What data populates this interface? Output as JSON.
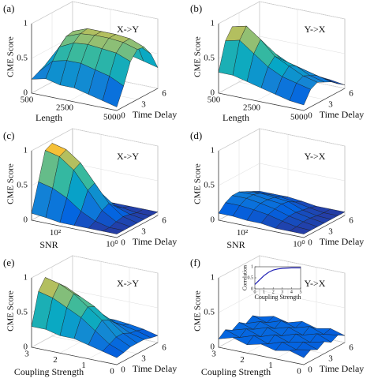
{
  "chart_data": [
    {
      "type": "surface",
      "panel": "(a)",
      "title": "X->Y",
      "zlabel": "CME Score",
      "xlabel": "Length",
      "ylabel": "Time Delay",
      "colormap": "parula",
      "x": [
        500,
        1250,
        2000,
        2750,
        3500,
        4250,
        5000
      ],
      "y": [
        0,
        1,
        2,
        3,
        4,
        5,
        6
      ],
      "z": [
        [
          0.2,
          0.25,
          0.3,
          0.35,
          0.3,
          0.25,
          0.2
        ],
        [
          0.25,
          0.45,
          0.6,
          0.7,
          0.72,
          0.6,
          0.4
        ],
        [
          0.2,
          0.5,
          0.7,
          0.78,
          0.8,
          0.7,
          0.45
        ],
        [
          0.2,
          0.5,
          0.72,
          0.8,
          0.8,
          0.72,
          0.45
        ],
        [
          0.15,
          0.45,
          0.7,
          0.8,
          0.8,
          0.7,
          0.4
        ],
        [
          0.1,
          0.4,
          0.68,
          0.78,
          0.78,
          0.65,
          0.35
        ],
        [
          0.05,
          0.3,
          0.6,
          0.72,
          0.7,
          0.55,
          0.3
        ]
      ],
      "xlim": [
        500,
        5000
      ],
      "ylim": [
        0,
        6
      ],
      "zlim": [
        0,
        1
      ],
      "xticks": [
        500,
        2500,
        5000
      ],
      "yticks": [
        0,
        3,
        6
      ],
      "zticks": [
        0,
        0.5,
        1
      ]
    },
    {
      "type": "surface",
      "panel": "(b)",
      "title": "Y->X",
      "zlabel": "CME Score",
      "xlabel": "Length",
      "ylabel": "Time Delay",
      "colormap": "parula",
      "x": [
        500,
        1250,
        2000,
        2750,
        3500,
        4250,
        5000
      ],
      "y": [
        0,
        1,
        2,
        3,
        4,
        5,
        6
      ],
      "z": [
        [
          0.3,
          0.7,
          0.85,
          0.8,
          0.6,
          0.4,
          0.3
        ],
        [
          0.3,
          0.75,
          0.9,
          0.75,
          0.55,
          0.35,
          0.2
        ],
        [
          0.25,
          0.6,
          0.75,
          0.6,
          0.45,
          0.3,
          0.15
        ],
        [
          0.2,
          0.45,
          0.55,
          0.45,
          0.35,
          0.25,
          0.12
        ],
        [
          0.15,
          0.35,
          0.45,
          0.4,
          0.3,
          0.2,
          0.1
        ],
        [
          0.1,
          0.3,
          0.35,
          0.3,
          0.25,
          0.15,
          0.08
        ],
        [
          0.08,
          0.25,
          0.3,
          0.25,
          0.2,
          0.12,
          0.05
        ]
      ],
      "xlim": [
        500,
        5000
      ],
      "ylim": [
        0,
        6
      ],
      "zlim": [
        0,
        1
      ],
      "xticks": [
        500,
        2500,
        5000
      ],
      "yticks": [
        0,
        3,
        6
      ],
      "zticks": [
        0,
        0.5,
        1
      ]
    },
    {
      "type": "surface",
      "panel": "(c)",
      "title": "X->Y",
      "zlabel": "CME Score",
      "xlabel": "SNR",
      "ylabel": "Time Delay",
      "colormap": "parula",
      "x": [
        3,
        2.5,
        2,
        1.5,
        1,
        0.5,
        0
      ],
      "y": [
        0,
        1,
        2,
        3,
        4,
        5,
        6
      ],
      "z": [
        [
          0.1,
          0.5,
          0.9,
          0.95,
          0.7,
          0.3,
          0.05
        ],
        [
          0.08,
          0.45,
          0.85,
          0.9,
          0.6,
          0.25,
          0.05
        ],
        [
          0.05,
          0.35,
          0.7,
          0.75,
          0.45,
          0.15,
          0.05
        ],
        [
          0.05,
          0.2,
          0.45,
          0.5,
          0.3,
          0.1,
          0.05
        ],
        [
          0.05,
          0.1,
          0.2,
          0.25,
          0.15,
          0.08,
          0.05
        ],
        [
          0.05,
          0.05,
          0.08,
          0.1,
          0.08,
          0.05,
          0.05
        ],
        [
          0.05,
          0.05,
          0.05,
          0.05,
          0.05,
          0.05,
          0.05
        ]
      ],
      "xlim": [
        3,
        0
      ],
      "ylim": [
        0,
        6
      ],
      "zlim": [
        0,
        1
      ],
      "xticks": [
        {
          "value": 2,
          "label": "10²"
        },
        {
          "value": 0,
          "label": "10⁰"
        }
      ],
      "yticks": [
        0,
        3,
        6
      ],
      "zticks": [
        0,
        0.5,
        1
      ]
    },
    {
      "type": "surface",
      "panel": "(d)",
      "title": "Y->X",
      "zlabel": "CME Score",
      "xlabel": "SNR",
      "ylabel": "Time Delay",
      "colormap": "parula",
      "x": [
        3,
        2.5,
        2,
        1.5,
        1,
        0.5,
        0
      ],
      "y": [
        0,
        1,
        2,
        3,
        4,
        5,
        6
      ],
      "z": [
        [
          0.1,
          0.2,
          0.25,
          0.25,
          0.2,
          0.15,
          0.1
        ],
        [
          0.1,
          0.2,
          0.25,
          0.25,
          0.22,
          0.15,
          0.1
        ],
        [
          0.08,
          0.18,
          0.22,
          0.22,
          0.2,
          0.15,
          0.1
        ],
        [
          0.08,
          0.15,
          0.18,
          0.2,
          0.18,
          0.12,
          0.08
        ],
        [
          0.05,
          0.1,
          0.12,
          0.12,
          0.1,
          0.08,
          0.05
        ],
        [
          0.05,
          0.06,
          0.08,
          0.08,
          0.06,
          0.05,
          0.05
        ],
        [
          0.05,
          0.05,
          0.05,
          0.05,
          0.05,
          0.05,
          0.05
        ]
      ],
      "xlim": [
        3,
        0
      ],
      "ylim": [
        0,
        6
      ],
      "zlim": [
        0,
        1
      ],
      "xticks": [
        {
          "value": 2,
          "label": "10²"
        },
        {
          "value": 0,
          "label": "10⁰"
        }
      ],
      "yticks": [
        0,
        3,
        6
      ],
      "zticks": [
        0,
        0.5,
        1
      ]
    },
    {
      "type": "surface",
      "panel": "(e)",
      "title": "X->Y",
      "zlabel": "CME Score",
      "xlabel": "Coupling Strength",
      "ylabel": "Time Delay",
      "colormap": "parula",
      "x": [
        3,
        2.5,
        2,
        1.5,
        1,
        0.5,
        0
      ],
      "y": [
        0,
        1,
        2,
        3,
        4,
        5,
        6
      ],
      "z": [
        [
          0.3,
          0.75,
          0.9,
          0.8,
          0.55,
          0.35,
          0.25
        ],
        [
          0.3,
          0.7,
          0.85,
          0.75,
          0.5,
          0.3,
          0.2
        ],
        [
          0.25,
          0.6,
          0.75,
          0.65,
          0.45,
          0.3,
          0.2
        ],
        [
          0.25,
          0.5,
          0.6,
          0.55,
          0.4,
          0.25,
          0.2
        ],
        [
          0.2,
          0.35,
          0.45,
          0.4,
          0.3,
          0.22,
          0.18
        ],
        [
          0.15,
          0.2,
          0.25,
          0.25,
          0.2,
          0.18,
          0.15
        ],
        [
          0.1,
          0.12,
          0.15,
          0.15,
          0.15,
          0.12,
          0.1
        ]
      ],
      "xlim": [
        3,
        0
      ],
      "ylim": [
        0,
        6
      ],
      "zlim": [
        0,
        1
      ],
      "xticks": [
        3,
        2,
        1,
        0
      ],
      "yticks": [
        0,
        3,
        6
      ],
      "zticks": [
        0,
        0.5,
        1
      ]
    },
    {
      "type": "surface",
      "panel": "(f)",
      "title": "Y->X",
      "zlabel": "CME Score",
      "xlabel": "Coupling Strength",
      "ylabel": "Time Delay",
      "colormap": "parula",
      "x": [
        3,
        2.5,
        2,
        1.5,
        1,
        0.5,
        0
      ],
      "y": [
        0,
        1,
        2,
        3,
        4,
        5,
        6
      ],
      "z": [
        [
          0.12,
          0.2,
          0.14,
          0.2,
          0.13,
          0.19,
          0.12
        ],
        [
          0.18,
          0.13,
          0.2,
          0.14,
          0.2,
          0.13,
          0.17
        ],
        [
          0.12,
          0.2,
          0.13,
          0.21,
          0.14,
          0.2,
          0.12
        ],
        [
          0.17,
          0.12,
          0.2,
          0.13,
          0.2,
          0.14,
          0.18
        ],
        [
          0.12,
          0.19,
          0.13,
          0.2,
          0.13,
          0.2,
          0.12
        ],
        [
          0.16,
          0.12,
          0.18,
          0.12,
          0.19,
          0.13,
          0.16
        ],
        [
          0.1,
          0.16,
          0.11,
          0.17,
          0.11,
          0.16,
          0.1
        ]
      ],
      "xlim": [
        3,
        0
      ],
      "ylim": [
        0,
        6
      ],
      "zlim": [
        0,
        1
      ],
      "xticks": [
        3,
        2,
        1,
        0
      ],
      "yticks": [
        0,
        3,
        6
      ],
      "zticks": [
        0,
        0.5,
        1
      ],
      "inset": {
        "type": "line",
        "xlabel": "Coupling Strength",
        "ylabel": "Correlation",
        "color": "#1f1fb4",
        "x": [
          0,
          0.5,
          1,
          1.5,
          2,
          2.5,
          3,
          4,
          5
        ],
        "values": [
          0.2,
          0.4,
          0.6,
          0.75,
          0.85,
          0.9,
          0.93,
          0.95,
          0.95
        ],
        "xlim": [
          0,
          5
        ],
        "ylim": [
          0,
          1
        ],
        "xticks": [
          0,
          1,
          2,
          3,
          4,
          5
        ],
        "yticks": [
          0,
          0.5,
          1
        ]
      }
    }
  ]
}
